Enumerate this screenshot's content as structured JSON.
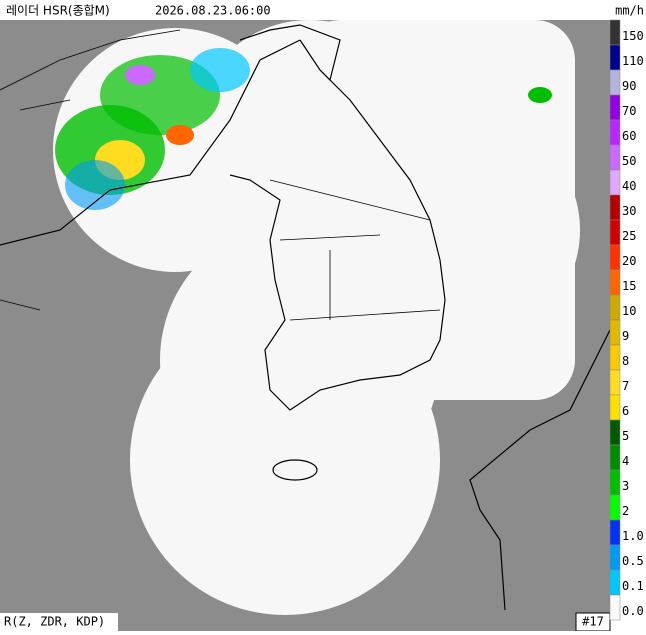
{
  "header": {
    "title": "레이더 HSR(종합M)",
    "time": "2026.08.23.06:00",
    "unit": "mm/h"
  },
  "legend": [
    {
      "label": "150",
      "color": "#333333"
    },
    {
      "label": "110",
      "color": "#000090"
    },
    {
      "label": "90",
      "color": "#b3b4de"
    },
    {
      "label": "70",
      "color": "#9300e4"
    },
    {
      "label": "60",
      "color": "#b329ff"
    },
    {
      "label": "50",
      "color": "#c969ff"
    },
    {
      "label": "40",
      "color": "#e0a9ff"
    },
    {
      "label": "30",
      "color": "#b40000"
    },
    {
      "label": "25",
      "color": "#d20000"
    },
    {
      "label": "20",
      "color": "#ff3200"
    },
    {
      "label": "15",
      "color": "#ff6600"
    },
    {
      "label": "10",
      "color": "#ccaa00"
    },
    {
      "label": "9",
      "color": "#e0b900"
    },
    {
      "label": "8",
      "color": "#f9cb00"
    },
    {
      "label": "7",
      "color": "#ffdc1f"
    },
    {
      "label": "6",
      "color": "#ffe100"
    },
    {
      "label": "5",
      "color": "#005a00"
    },
    {
      "label": "4",
      "color": "#008c00"
    },
    {
      "label": "3",
      "color": "#00be00"
    },
    {
      "label": "2",
      "color": "#00ff00"
    },
    {
      "label": "1.0",
      "color": "#0033f5"
    },
    {
      "label": "0.5",
      "color": "#009bf5"
    },
    {
      "label": "0.1",
      "color": "#00c8ff"
    },
    {
      "label": "0.0",
      "color": "#fafafa"
    }
  ],
  "footer": {
    "method": "R(Z, ZDR, KDP)",
    "count": "#17"
  }
}
